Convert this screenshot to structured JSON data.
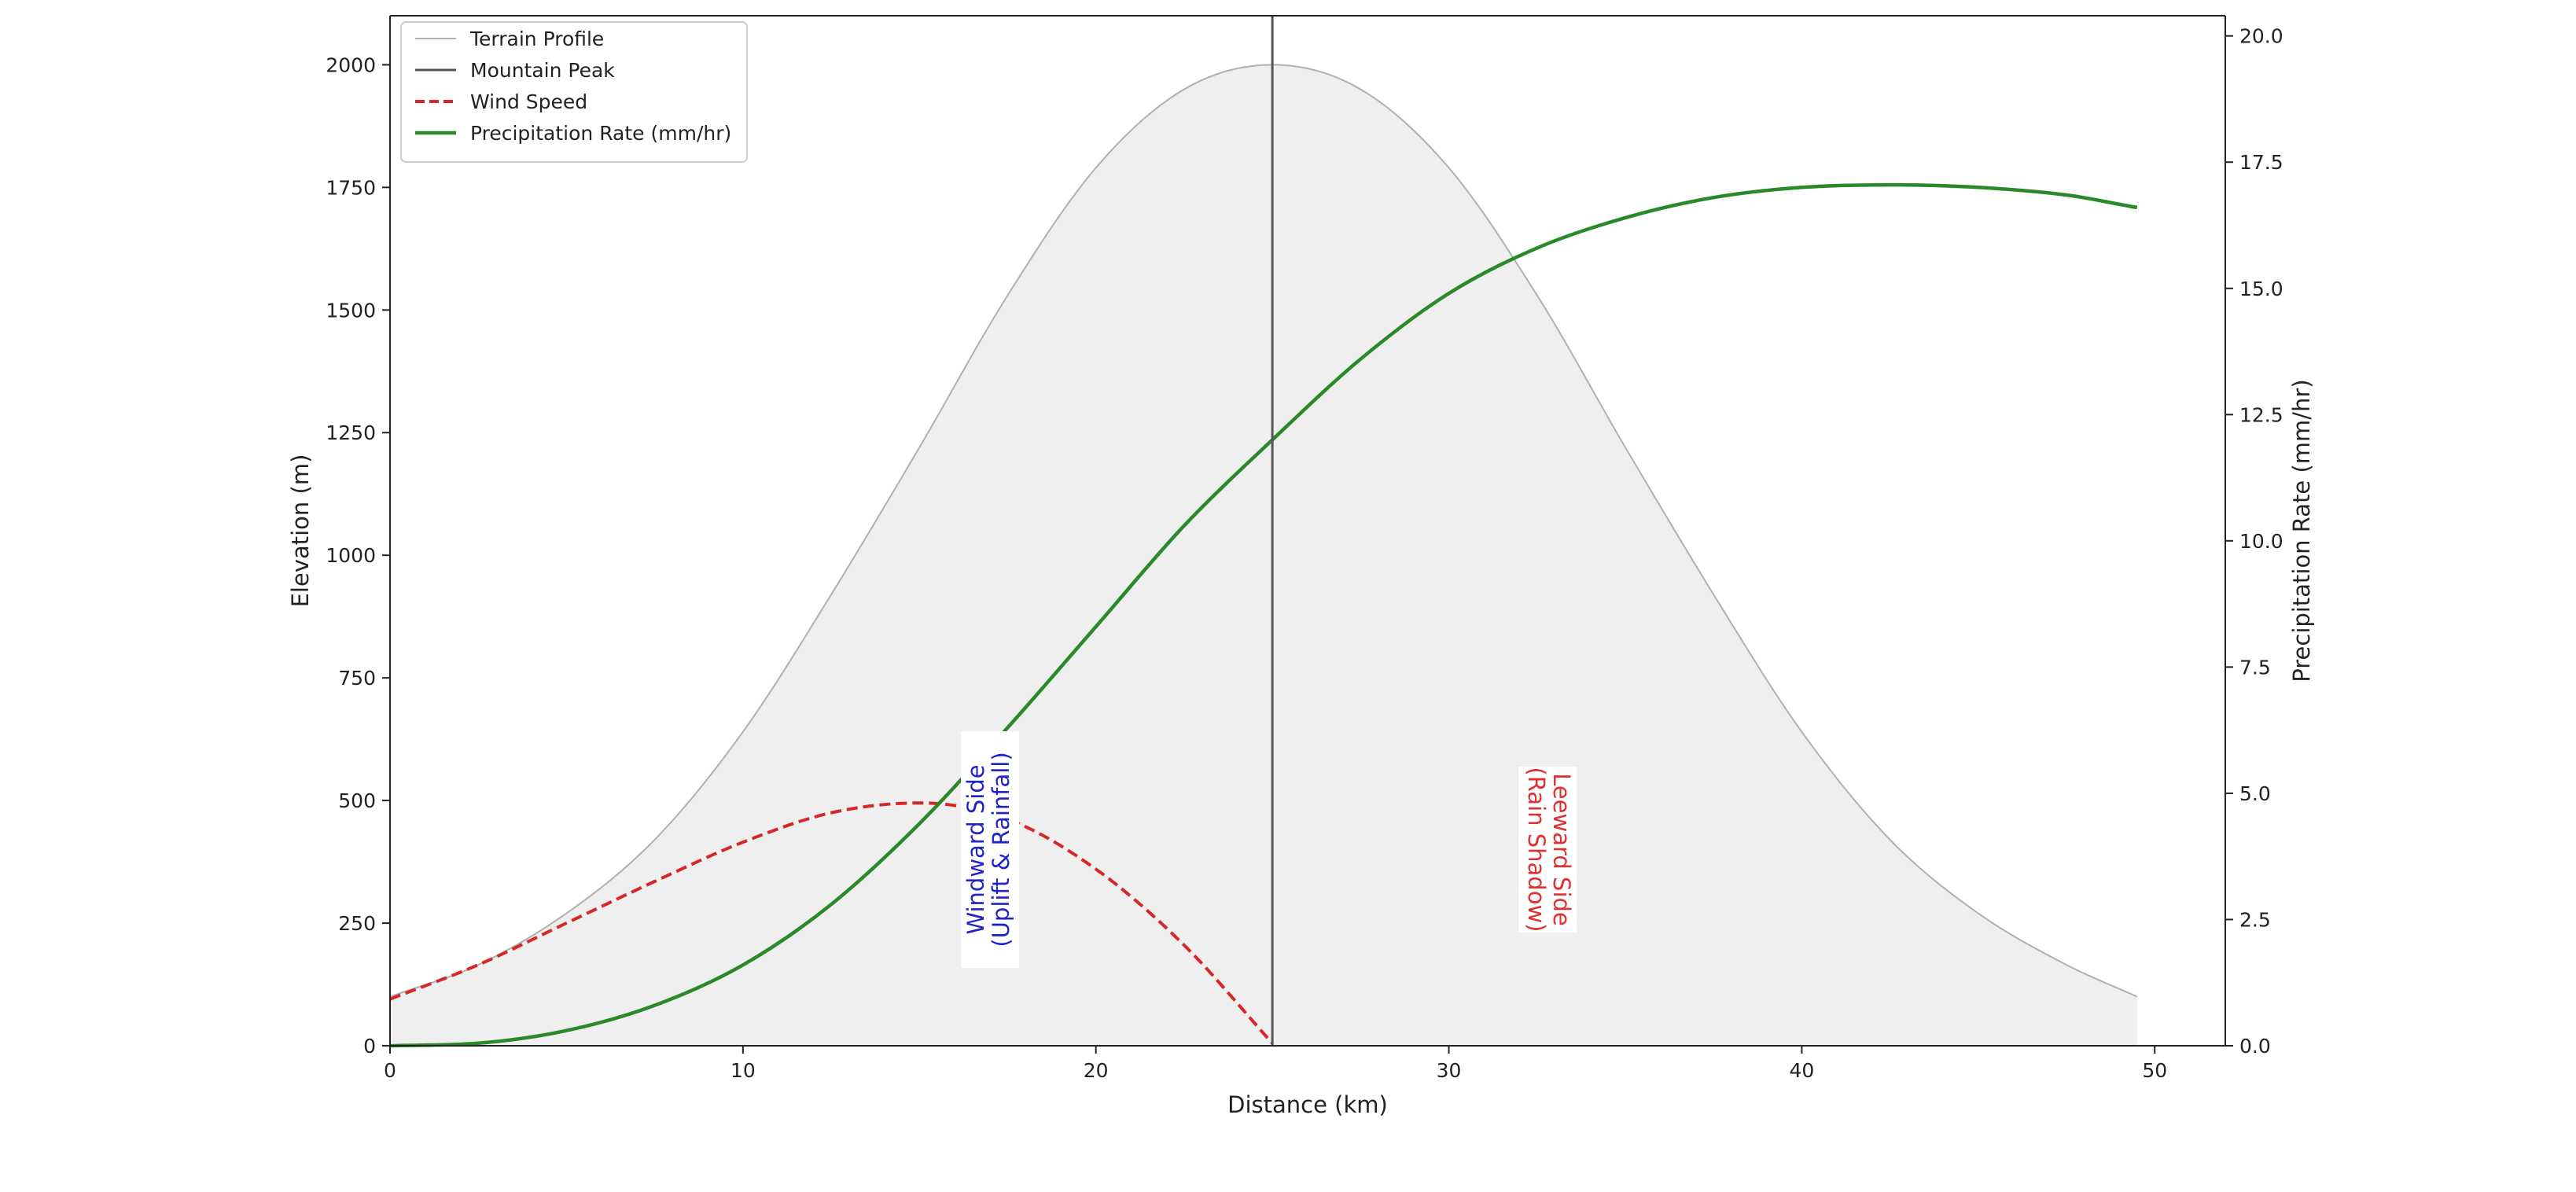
{
  "chart_data": {
    "type": "line",
    "title": "",
    "xlabel": "Distance (km)",
    "ylabel": "Elevation (m)",
    "y2label": "Precipitation Rate (mm/hr)",
    "xlim": [
      0,
      52
    ],
    "ylim": [
      0,
      2100
    ],
    "y2lim": [
      0,
      20.4
    ],
    "x_ticks": [
      0,
      10,
      20,
      30,
      40,
      50
    ],
    "x_tick_labels": [
      "0",
      "10",
      "20",
      "30",
      "40",
      "50"
    ],
    "y_ticks": [
      0,
      250,
      500,
      750,
      1000,
      1250,
      1500,
      1750,
      2000
    ],
    "y_tick_labels": [
      "0",
      "250",
      "500",
      "750",
      "1000",
      "1250",
      "1500",
      "1750",
      "2000"
    ],
    "y2_ticks": [
      0,
      2.5,
      5,
      7.5,
      10,
      12.5,
      15,
      17.5,
      20
    ],
    "y2_tick_labels": [
      "0.0",
      "2.5",
      "5.0",
      "7.5",
      "10.0",
      "12.5",
      "15.0",
      "17.5",
      "20.0"
    ],
    "grid": false,
    "legend_position": "top-left",
    "series": [
      {
        "name": "Terrain Profile",
        "axis": "left",
        "style": "filled-area",
        "color": "#b0b0b0",
        "fill": "#efefef",
        "x": [
          0,
          2.5,
          5,
          7.5,
          10,
          12.5,
          15,
          17.5,
          20,
          22.5,
          25,
          27.5,
          30,
          32.5,
          35,
          37.5,
          40,
          42.5,
          45,
          47.5,
          49.5
        ],
        "y": [
          100,
          165,
          270,
          420,
          640,
          920,
          1220,
          1530,
          1790,
          1950,
          2000,
          1950,
          1790,
          1530,
          1220,
          920,
          640,
          420,
          270,
          165,
          100
        ]
      },
      {
        "name": "Wind Speed",
        "axis": "left",
        "style": "dashed",
        "color": "#d62728",
        "x": [
          0,
          2.5,
          5,
          7.5,
          10,
          12.5,
          15,
          17.5,
          20,
          22.5,
          25
        ],
        "y": [
          95,
          165,
          250,
          335,
          415,
          475,
          495,
          462,
          360,
          205,
          5
        ]
      },
      {
        "name": "Precipitation Rate (mm/hr)",
        "axis": "right",
        "style": "solid",
        "color": "#2a8a2a",
        "x": [
          0,
          2.5,
          5,
          7.5,
          10,
          12.5,
          15,
          17.5,
          20,
          22.5,
          25,
          27.5,
          30,
          32.5,
          35,
          37.5,
          40,
          42.5,
          45,
          47.5,
          49.5
        ],
        "y": [
          0,
          0.05,
          0.3,
          0.8,
          1.6,
          2.8,
          4.4,
          6.3,
          8.3,
          10.3,
          12.0,
          13.6,
          14.9,
          15.8,
          16.4,
          16.8,
          17.0,
          17.05,
          17.0,
          16.85,
          16.6
        ]
      }
    ],
    "peak_line": {
      "name": "Mountain Peak",
      "x": 25,
      "color": "#555555"
    },
    "legend": [
      "Terrain Profile",
      "Mountain Peak",
      "Wind Speed",
      "Precipitation Rate (mm/hr)"
    ],
    "annotations": [
      {
        "text": "Windward Side\n(Uplift & Rainfall)",
        "x": 17,
        "y": 400,
        "color": "#2222cc",
        "rotation": -90
      },
      {
        "text": "Leeward Side\n(Rain Shadow)",
        "x": 32.8,
        "y": 400,
        "color": "#e03030",
        "rotation": 90
      }
    ]
  }
}
